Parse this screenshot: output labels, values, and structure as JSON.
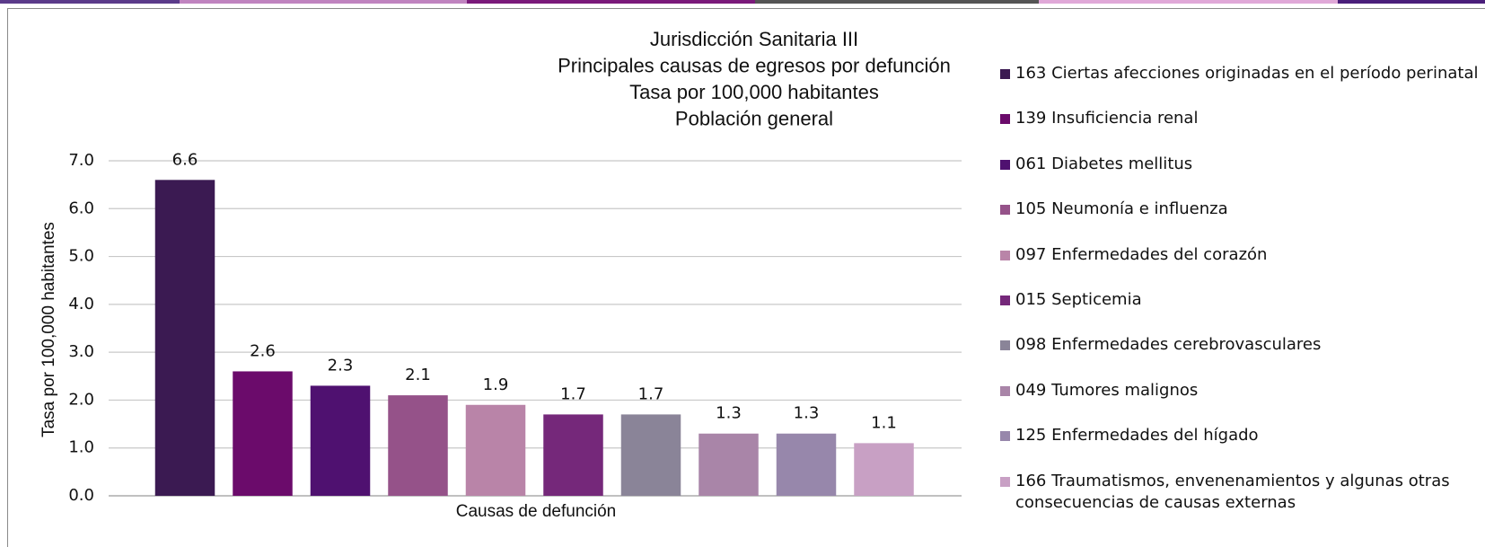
{
  "chart_data": {
    "type": "bar",
    "title": [
      "Jurisdicción Sanitaria III",
      "Principales causas de egresos por defunción",
      "Tasa por 100,000 habitantes",
      "Población general"
    ],
    "x_label": "Causas de defunción",
    "y_label": "Tasa por 100,000 habitantes",
    "categories": [
      "163 Ciertas afecciones originadas en el período perinatal",
      "139 Insuficiencia renal",
      "061 Diabetes mellitus",
      "105 Neumonía e influenza",
      "097 Enfermedades del corazón",
      "015 Septicemia",
      "098 Enfermedades cerebrovasculares",
      "049 Tumores malignos",
      "125 Enfermedades del hígado",
      "166 Traumatismos, envenenamientos y algunas otras consecuencias de causas externas"
    ],
    "values": [
      6.6,
      2.6,
      2.3,
      2.1,
      1.9,
      1.7,
      1.7,
      1.3,
      1.3,
      1.1
    ],
    "colors": [
      "#3b1a52",
      "#6b0b6b",
      "#4f1170",
      "#955289",
      "#b984a8",
      "#75287a",
      "#8a8498",
      "#a985a8",
      "#9787ab",
      "#c8a0c4"
    ],
    "ylim": [
      0,
      7
    ],
    "yticks": [
      {
        "value": 0,
        "label": "0.0"
      },
      {
        "value": 1,
        "label": "1.0"
      },
      {
        "value": 2,
        "label": "2.0"
      },
      {
        "value": 3,
        "label": "3.0"
      },
      {
        "value": 4,
        "label": "4.0"
      },
      {
        "value": 5,
        "label": "5.0"
      },
      {
        "value": 6,
        "label": "6.0"
      },
      {
        "value": 7,
        "label": "7.0"
      }
    ],
    "grid": true,
    "legend": "right"
  }
}
